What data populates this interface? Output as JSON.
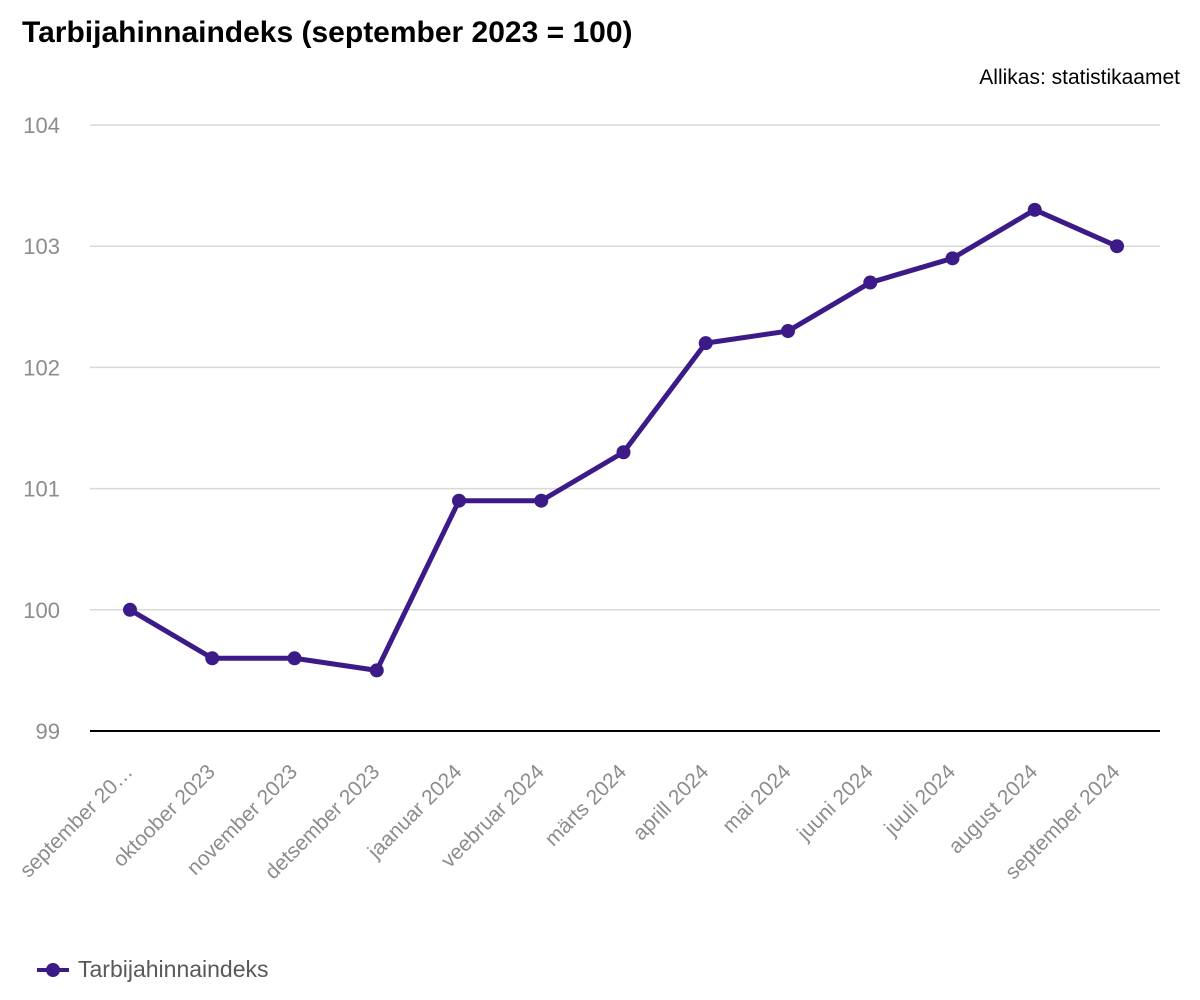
{
  "header": {
    "title": "Tarbijahinnaindeks (september 2023 = 100)",
    "source": "Allikas: statistikaamet"
  },
  "legend": {
    "label": "Tarbijahinnaindeks"
  },
  "colors": {
    "series": "#3c1a87",
    "grid": "#d9d9d9",
    "baseline": "#000000",
    "tick_text": "#8c8c8c"
  },
  "chart_data": {
    "type": "line",
    "title": "Tarbijahinnaindeks (september 2023 = 100)",
    "source": "Allikas: statistikaamet",
    "xlabel": "",
    "ylabel": "",
    "categories": [
      "september 2023",
      "oktoober 2023",
      "november 2023",
      "detsember 2023",
      "jaanuar 2024",
      "veebruar 2024",
      "märts 2024",
      "aprill 2024",
      "mai 2024",
      "juuni 2024",
      "juuli 2024",
      "august 2024",
      "september 2024"
    ],
    "category_display": [
      "september 20…",
      "oktoober 2023",
      "november 2023",
      "detsember 2023",
      "jaanuar 2024",
      "veebruar 2024",
      "märts 2024",
      "aprill 2024",
      "mai 2024",
      "juuni 2024",
      "juuli 2024",
      "august 2024",
      "september 2024"
    ],
    "series": [
      {
        "name": "Tarbijahinnaindeks",
        "values": [
          100.0,
          99.6,
          99.6,
          99.5,
          100.9,
          100.9,
          101.3,
          102.2,
          102.3,
          102.7,
          102.9,
          103.3,
          103.0
        ]
      }
    ],
    "ylim": [
      99,
      104
    ],
    "yticks": [
      99,
      100,
      101,
      102,
      103,
      104
    ],
    "grid": true,
    "legend_position": "bottom-left"
  }
}
